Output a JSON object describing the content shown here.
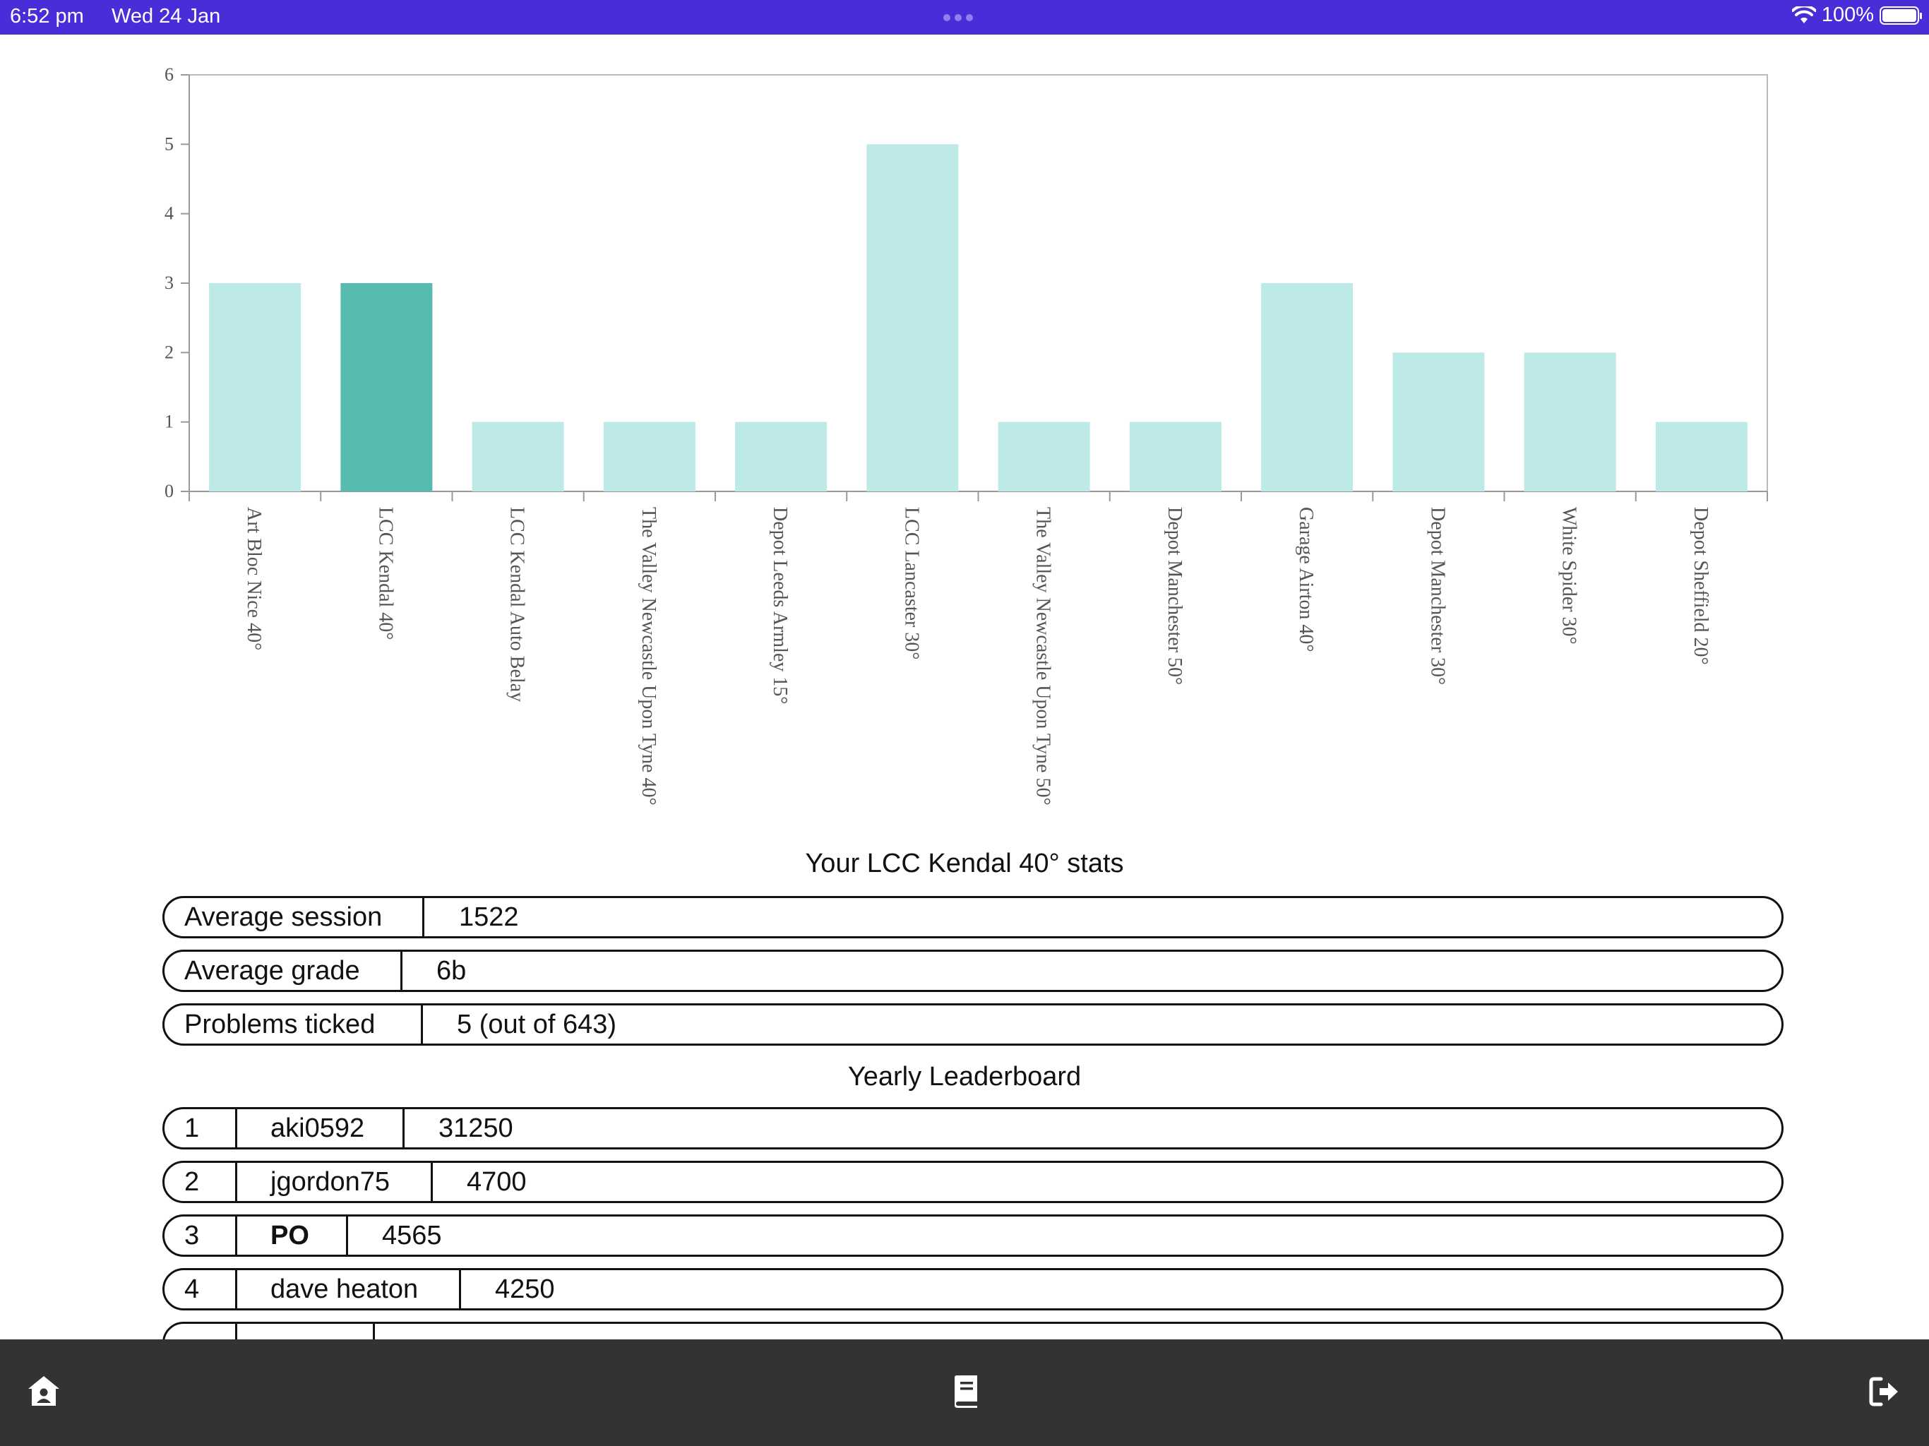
{
  "status_bar": {
    "time": "6:52 pm",
    "date": "Wed 24 Jan",
    "battery": "100%"
  },
  "chart_data": {
    "type": "bar",
    "categories": [
      "Art Bloc Nice 40°",
      "LCC Kendal 40°",
      "LCC Kendal Auto Belay",
      "The Valley Newcastle Upon Tyne 40°",
      "Depot Leeds Armley 15°",
      "LCC Lancaster 30°",
      "The Valley Newcastle Upon Tyne 50°",
      "Depot Manchester 50°",
      "Garage Airton 40°",
      "Depot Manchester 30°",
      "White Spider 30°",
      "Depot Sheffield 20°"
    ],
    "values": [
      3,
      3,
      1,
      1,
      1,
      5,
      1,
      1,
      3,
      2,
      2,
      1
    ],
    "highlighted_category": "LCC Kendal 40°",
    "ylim": [
      0,
      6
    ],
    "yticks": [
      "0",
      "1",
      "2",
      "3",
      "4",
      "5",
      "6"
    ],
    "bar_color": "#bde9e6",
    "highlight_color": "#57bbb0"
  },
  "stats": {
    "title": "Your LCC Kendal 40° stats",
    "rows": [
      {
        "label": "Average session",
        "value": "1522"
      },
      {
        "label": "Average grade",
        "value": "6b"
      },
      {
        "label": "Problems ticked",
        "value": "5 (out of 643)"
      }
    ]
  },
  "leaderboard": {
    "title": "Yearly Leaderboard",
    "rows": [
      {
        "rank": "1",
        "name": "aki0592",
        "score": "31250"
      },
      {
        "rank": "2",
        "name": "jgordon75",
        "score": "4700"
      },
      {
        "rank": "3",
        "name": "PO",
        "score": "4565"
      },
      {
        "rank": "4",
        "name": "dave heaton",
        "score": "4250"
      }
    ]
  },
  "bottom_nav": {
    "icons": [
      "home-icon",
      "logbook-icon",
      "logout-icon"
    ]
  }
}
